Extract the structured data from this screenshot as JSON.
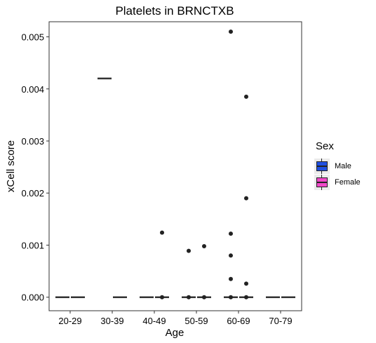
{
  "chart_data": {
    "type": "box",
    "title": "Platelets in BRNCTXB",
    "xlabel": "Age",
    "ylabel": "xCell score",
    "categories": [
      "20-29",
      "30-39",
      "40-49",
      "50-59",
      "60-69",
      "70-79"
    ],
    "ylim": [
      -0.00026,
      0.00529
    ],
    "yticks": [
      0.0,
      0.001,
      0.002,
      0.003,
      0.004,
      0.005
    ],
    "ytick_labels": [
      "0.000",
      "0.001",
      "0.002",
      "0.003",
      "0.004",
      "0.005"
    ],
    "grid": false,
    "legend": {
      "title": "Sex",
      "placement": "right",
      "entries": [
        {
          "name": "Male",
          "color": "#1f4fe0"
        },
        {
          "name": "Female",
          "color": "#f048c8"
        }
      ]
    },
    "series": [
      {
        "name": "Male",
        "color": "#1f4fe0",
        "boxes": [
          {
            "category": "20-29",
            "median": 0.0,
            "q1": 0.0,
            "q3": 0.0,
            "whisker_low": 0.0,
            "whisker_high": 0.0,
            "outliers": []
          },
          {
            "category": "30-39",
            "median": 0.0042,
            "q1": 0.0042,
            "q3": 0.0042,
            "whisker_low": 0.0042,
            "whisker_high": 0.0042,
            "outliers": []
          },
          {
            "category": "40-49",
            "median": 0.0,
            "q1": 0.0,
            "q3": 0.0,
            "whisker_low": 0.0,
            "whisker_high": 0.0,
            "outliers": []
          },
          {
            "category": "50-59",
            "median": 0.0,
            "q1": 0.0,
            "q3": 0.0,
            "whisker_low": 0.0,
            "whisker_high": 0.0,
            "outliers": [
              0.00089,
              0.0
            ]
          },
          {
            "category": "60-69",
            "median": 0.0,
            "q1": 0.0,
            "q3": 0.0,
            "whisker_low": 0.0,
            "whisker_high": 0.0,
            "outliers": [
              0.0051,
              0.00122,
              0.0008,
              0.00035,
              0.0
            ]
          },
          {
            "category": "70-79",
            "median": 0.0,
            "q1": 0.0,
            "q3": 0.0,
            "whisker_low": 0.0,
            "whisker_high": 0.0,
            "outliers": []
          }
        ]
      },
      {
        "name": "Female",
        "color": "#f048c8",
        "boxes": [
          {
            "category": "20-29",
            "median": 0.0,
            "q1": 0.0,
            "q3": 0.0,
            "whisker_low": 0.0,
            "whisker_high": 0.0,
            "outliers": []
          },
          {
            "category": "30-39",
            "median": 0.0,
            "q1": 0.0,
            "q3": 0.0,
            "whisker_low": 0.0,
            "whisker_high": 0.0,
            "outliers": []
          },
          {
            "category": "40-49",
            "median": 0.0,
            "q1": 0.0,
            "q3": 0.0,
            "whisker_low": 0.0,
            "whisker_high": 0.0,
            "outliers": [
              0.00124,
              0.0
            ]
          },
          {
            "category": "50-59",
            "median": 0.0,
            "q1": 0.0,
            "q3": 0.0,
            "whisker_low": 0.0,
            "whisker_high": 0.0,
            "outliers": [
              0.00098,
              0.0
            ]
          },
          {
            "category": "60-69",
            "median": 0.0,
            "q1": 0.0,
            "q3": 0.0,
            "whisker_low": 0.0,
            "whisker_high": 0.0,
            "outliers": [
              0.00385,
              0.0019,
              0.00026,
              0.0
            ]
          },
          {
            "category": "70-79",
            "median": 0.0,
            "q1": 0.0,
            "q3": 0.0,
            "whisker_low": 0.0,
            "whisker_high": 0.0,
            "outliers": []
          }
        ]
      }
    ]
  }
}
